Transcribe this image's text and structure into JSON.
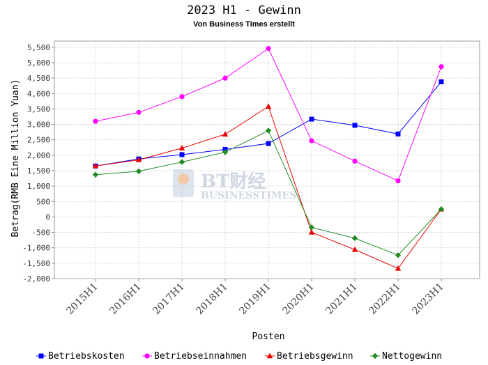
{
  "colors": {
    "Betriebskosten": "#0000ff",
    "Betriebseinnahmen": "#ff00ff",
    "Betriebsgewinn": "#ee0000",
    "Nettogewinn": "#228b22"
  },
  "watermark": {
    "cn": "BT财经",
    "en": "BUSINESSTIMES"
  },
  "chart_data": {
    "type": "line",
    "title": "2023 H1 - Gewinn",
    "subtitle": "Von Business Times erstellt",
    "xlabel": "Posten",
    "ylabel": "Betrag(RMB Eine Million Yuan)",
    "categories": [
      "2015H1",
      "2016H1",
      "2017H1",
      "2018H1",
      "2019H1",
      "2020H1",
      "2021H1",
      "2022H1",
      "2023H1"
    ],
    "ylim": [
      -2000,
      5700
    ],
    "yticks": [
      -2000,
      -1500,
      -1000,
      -500,
      0,
      500,
      1000,
      1500,
      2000,
      2500,
      3000,
      3500,
      4000,
      4500,
      5000,
      5500
    ],
    "ytick_labels": [
      "-2,000",
      "-1,500",
      "-1,000",
      "-500",
      "0",
      "500",
      "1,000",
      "1,500",
      "2,000",
      "2,500",
      "3,000",
      "3,500",
      "4,000",
      "4,500",
      "5,000",
      "5,500"
    ],
    "grid": true,
    "legend_position": "bottom",
    "series": [
      {
        "name": "Betriebskosten",
        "marker": "square",
        "values": [
          1650,
          1880,
          2020,
          2190,
          2380,
          3170,
          2970,
          2690,
          4380
        ]
      },
      {
        "name": "Betriebseinnahmen",
        "marker": "circle",
        "values": [
          3100,
          3390,
          3900,
          4500,
          5460,
          2470,
          1810,
          1170,
          4870
        ]
      },
      {
        "name": "Betriebsgewinn",
        "marker": "triangle",
        "values": [
          1650,
          1850,
          2230,
          2680,
          3580,
          -500,
          -1060,
          -1670,
          250
        ]
      },
      {
        "name": "Nettogewinn",
        "marker": "diamond",
        "values": [
          1370,
          1480,
          1780,
          2100,
          2800,
          -340,
          -690,
          -1240,
          250
        ]
      }
    ]
  }
}
